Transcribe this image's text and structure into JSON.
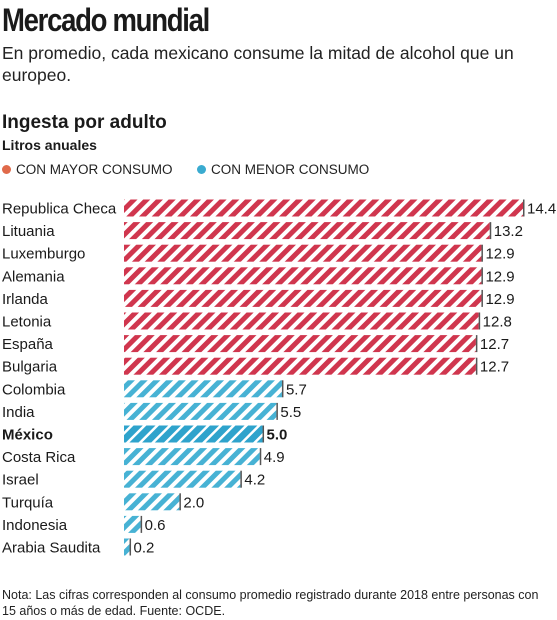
{
  "header": {
    "title": "Mercado mundial",
    "subtitle": "En promedio, cada mexicano consume la mitad de alcohol que un europeo."
  },
  "chart_data": {
    "type": "bar",
    "orientation": "horizontal",
    "title": "Ingesta por adulto",
    "unit": "Litros anuales",
    "legend": [
      {
        "name": "CON MAYOR CONSUMO",
        "color": "#e06a4a"
      },
      {
        "name": "CON MENOR CONSUMO",
        "color": "#3aabd0"
      }
    ],
    "categories": [
      "Republica Checa",
      "Lituania",
      "Luxemburgo",
      "Alemania",
      "Irlanda",
      "Letonia",
      "España",
      "Bulgaria",
      "Colombia",
      "India",
      "México",
      "Costa Rica",
      "Israel",
      "Turquía",
      "Indonesia",
      "Arabia Saudita"
    ],
    "values": [
      14.4,
      13.2,
      12.9,
      12.9,
      12.9,
      12.8,
      12.7,
      12.7,
      5.7,
      5.5,
      5.0,
      4.9,
      4.2,
      2.0,
      0.6,
      0.2
    ],
    "value_labels": [
      "14.4",
      "13.2",
      "12.9",
      "12.9",
      "12.9",
      "12.8",
      "12.7",
      "12.7",
      "5.7",
      "5.5",
      "5.0",
      "4.9",
      "4.2",
      "2.0",
      "0.6",
      "0.2"
    ],
    "groups": [
      "high",
      "high",
      "high",
      "high",
      "high",
      "high",
      "high",
      "high",
      "low",
      "low",
      "low",
      "low",
      "low",
      "low",
      "low",
      "low"
    ],
    "highlight": "México",
    "colors": {
      "high": "#d0364e",
      "low": "#47b2d4",
      "highlight": "#2ea3cc"
    },
    "xlim": [
      0,
      14.4
    ]
  },
  "note": "Nota: Las cifras corresponden al consumo promedio registrado durante 2018 entre personas con 15 años o más de edad. Fuente: OCDE."
}
